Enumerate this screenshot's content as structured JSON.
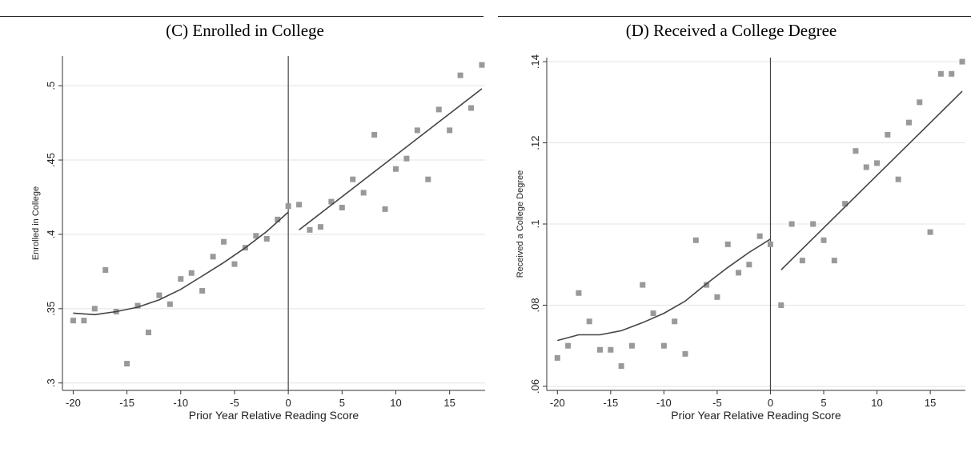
{
  "chart_data": [
    {
      "type": "scatter",
      "title": "(C) Enrolled in College",
      "xlabel": "Prior Year Relative Reading Score",
      "ylabel": "Enrolled in College",
      "xlim": [
        -21,
        18.3
      ],
      "ylim": [
        0.295,
        0.52
      ],
      "xticks": [
        -20,
        -15,
        -10,
        -5,
        0,
        5,
        10,
        15
      ],
      "xtick_labels": [
        "-20",
        "-15",
        "-10",
        "-5",
        "0",
        "5",
        "10",
        "15"
      ],
      "yticks": [
        0.3,
        0.35,
        0.4,
        0.45,
        0.5
      ],
      "ytick_labels": [
        ".3",
        ".35",
        ".4",
        ".45",
        ".5"
      ],
      "cutoff": 0,
      "grid": true,
      "colors": {
        "points": "#999999",
        "line": "#444444",
        "grid": "#e3e3e3"
      },
      "points": [
        [
          -20,
          0.342
        ],
        [
          -19,
          0.342
        ],
        [
          -18,
          0.35
        ],
        [
          -17,
          0.376
        ],
        [
          -16,
          0.348
        ],
        [
          -15,
          0.313
        ],
        [
          -14,
          0.352
        ],
        [
          -13,
          0.334
        ],
        [
          -12,
          0.359
        ],
        [
          -11,
          0.353
        ],
        [
          -10,
          0.37
        ],
        [
          -9,
          0.374
        ],
        [
          -8,
          0.362
        ],
        [
          -7,
          0.385
        ],
        [
          -6,
          0.395
        ],
        [
          -5,
          0.38
        ],
        [
          -4,
          0.391
        ],
        [
          -3,
          0.399
        ],
        [
          -2,
          0.397
        ],
        [
          -1,
          0.41
        ],
        [
          0,
          0.419
        ],
        [
          1,
          0.42
        ],
        [
          2,
          0.403
        ],
        [
          3,
          0.405
        ],
        [
          4,
          0.422
        ],
        [
          5,
          0.418
        ],
        [
          6,
          0.437
        ],
        [
          7,
          0.428
        ],
        [
          8,
          0.467
        ],
        [
          9,
          0.417
        ],
        [
          10,
          0.444
        ],
        [
          11,
          0.451
        ],
        [
          12,
          0.47
        ],
        [
          13,
          0.437
        ],
        [
          14,
          0.484
        ],
        [
          15,
          0.47
        ],
        [
          16,
          0.507
        ],
        [
          17,
          0.485
        ],
        [
          18,
          0.514
        ]
      ],
      "fit_left": [
        [
          -20,
          0.347
        ],
        [
          -18,
          0.346
        ],
        [
          -16,
          0.348
        ],
        [
          -14,
          0.351
        ],
        [
          -12,
          0.356
        ],
        [
          -10,
          0.363
        ],
        [
          -8,
          0.372
        ],
        [
          -6,
          0.381
        ],
        [
          -4,
          0.391
        ],
        [
          -2,
          0.402
        ],
        [
          0,
          0.415
        ]
      ],
      "fit_right": [
        [
          1,
          0.403
        ],
        [
          18,
          0.498
        ]
      ]
    },
    {
      "type": "scatter",
      "title": "(D) Received a College Degree",
      "xlabel": "Prior Year Relative Reading Score",
      "ylabel": "Received a College Degree",
      "xlim": [
        -21,
        18.3
      ],
      "ylim": [
        0.059,
        0.141
      ],
      "xticks": [
        -20,
        -15,
        -10,
        -5,
        0,
        5,
        10,
        15
      ],
      "xtick_labels": [
        "-20",
        "-15",
        "-10",
        "-5",
        "0",
        "5",
        "10",
        "15"
      ],
      "yticks": [
        0.06,
        0.08,
        0.1,
        0.12,
        0.14
      ],
      "ytick_labels": [
        ".06",
        ".08",
        ".1",
        ".12",
        ".14"
      ],
      "cutoff": 0,
      "grid": true,
      "colors": {
        "points": "#999999",
        "line": "#444444",
        "grid": "#e3e3e3"
      },
      "points": [
        [
          -20,
          0.067
        ],
        [
          -19,
          0.07
        ],
        [
          -18,
          0.083
        ],
        [
          -17,
          0.076
        ],
        [
          -16,
          0.069
        ],
        [
          -15,
          0.069
        ],
        [
          -14,
          0.065
        ],
        [
          -13,
          0.07
        ],
        [
          -12,
          0.085
        ],
        [
          -11,
          0.078
        ],
        [
          -10,
          0.07
        ],
        [
          -9,
          0.076
        ],
        [
          -8,
          0.068
        ],
        [
          -7,
          0.096
        ],
        [
          -6,
          0.085
        ],
        [
          -5,
          0.082
        ],
        [
          -4,
          0.095
        ],
        [
          -3,
          0.088
        ],
        [
          -2,
          0.09
        ],
        [
          -1,
          0.097
        ],
        [
          0,
          0.095
        ],
        [
          1,
          0.08
        ],
        [
          2,
          0.1
        ],
        [
          3,
          0.091
        ],
        [
          4,
          0.1
        ],
        [
          5,
          0.096
        ],
        [
          6,
          0.091
        ],
        [
          7,
          0.105
        ],
        [
          8,
          0.118
        ],
        [
          9,
          0.114
        ],
        [
          10,
          0.115
        ],
        [
          11,
          0.122
        ],
        [
          12,
          0.111
        ],
        [
          13,
          0.125
        ],
        [
          14,
          0.13
        ],
        [
          15,
          0.098
        ],
        [
          16,
          0.137
        ],
        [
          17,
          0.137
        ],
        [
          18,
          0.14
        ]
      ],
      "fit_left": [
        [
          -20,
          0.0713
        ],
        [
          -18,
          0.0727
        ],
        [
          -16,
          0.0727
        ],
        [
          -14,
          0.0737
        ],
        [
          -12,
          0.0757
        ],
        [
          -10,
          0.078
        ],
        [
          -8,
          0.081
        ],
        [
          -6,
          0.0853
        ],
        [
          -4,
          0.0893
        ],
        [
          -2,
          0.093
        ],
        [
          0,
          0.0963
        ]
      ],
      "fit_right": [
        [
          1,
          0.0887
        ],
        [
          18,
          0.1327
        ]
      ]
    }
  ]
}
